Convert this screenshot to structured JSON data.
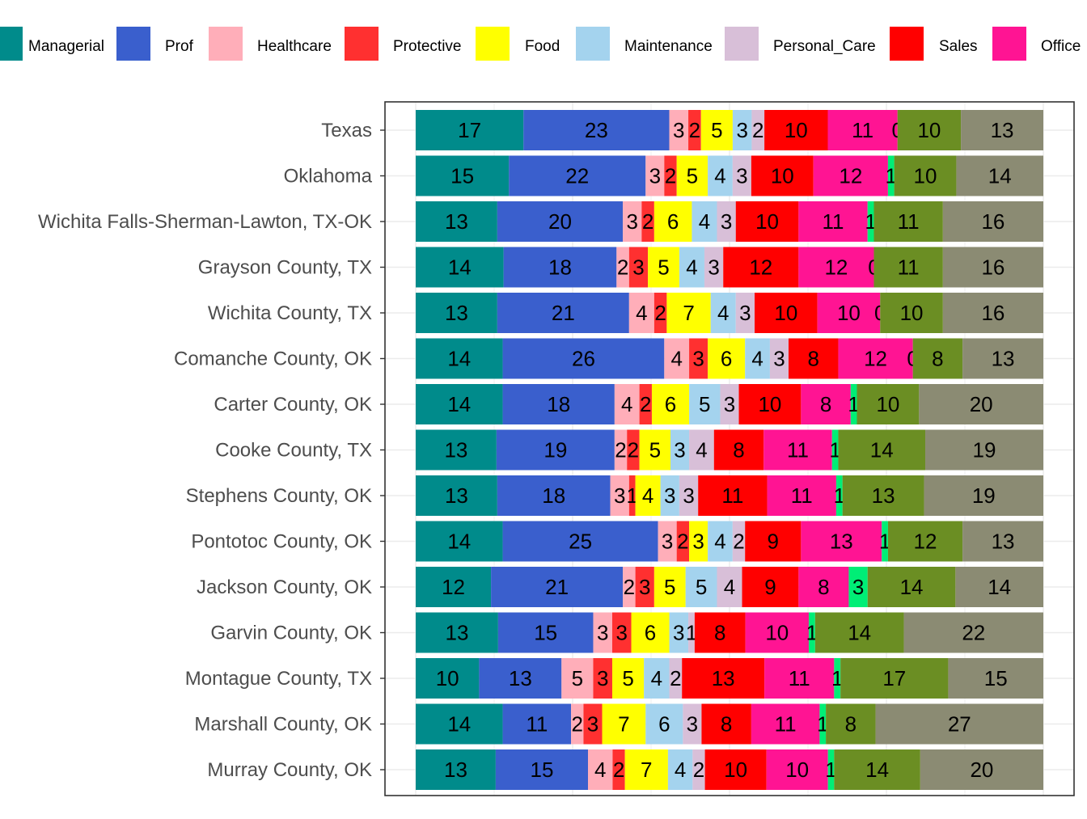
{
  "chart_data": {
    "type": "bar",
    "orientation": "horizontal",
    "stacked": "percent",
    "title": "",
    "xlabel": "",
    "ylabel": "",
    "xlim": [
      0,
      100
    ],
    "grid": true,
    "legend_position": "top",
    "categories": [
      "Texas",
      "Oklahoma",
      "Wichita Falls-Sherman-Lawton, TX-OK",
      "Grayson County, TX",
      "Wichita County, TX",
      "Comanche County, OK",
      "Carter County, OK",
      "Cooke County, TX",
      "Stephens County, OK",
      "Pontotoc County, OK",
      "Jackson County, OK",
      "Garvin County, OK",
      "Montague County, TX",
      "Marshall County, OK",
      "Murray County, OK"
    ],
    "series": [
      {
        "name": "Managerial",
        "color": "#008B8B",
        "values": [
          17,
          15,
          13,
          14,
          13,
          14,
          14,
          13,
          13,
          14,
          12,
          13,
          10,
          14,
          13
        ]
      },
      {
        "name": "Prof",
        "color": "#3A5FCD",
        "values": [
          23,
          22,
          20,
          18,
          21,
          26,
          18,
          19,
          18,
          25,
          21,
          15,
          13,
          11,
          15
        ]
      },
      {
        "name": "Healthcare",
        "color": "#FFAEB9",
        "values": [
          3,
          3,
          3,
          2,
          4,
          4,
          4,
          2,
          3,
          3,
          2,
          3,
          5,
          2,
          4
        ]
      },
      {
        "name": "Protective",
        "color": "#FF3030",
        "values": [
          2,
          2,
          2,
          3,
          2,
          3,
          2,
          2,
          1,
          2,
          3,
          3,
          3,
          3,
          2
        ]
      },
      {
        "name": "Food",
        "color": "#FFFF00",
        "values": [
          5,
          5,
          6,
          5,
          7,
          6,
          6,
          5,
          4,
          3,
          5,
          6,
          5,
          7,
          7
        ]
      },
      {
        "name": "Maintenance",
        "color": "#A4D3EE",
        "values": [
          3,
          4,
          4,
          4,
          4,
          4,
          5,
          3,
          3,
          4,
          5,
          3,
          4,
          6,
          4
        ]
      },
      {
        "name": "Personal_Care",
        "color": "#D8BFD8",
        "values": [
          2,
          3,
          3,
          3,
          3,
          3,
          3,
          4,
          3,
          2,
          4,
          1,
          2,
          3,
          2
        ]
      },
      {
        "name": "Sales",
        "color": "#FF0000",
        "values": [
          10,
          10,
          10,
          12,
          10,
          8,
          10,
          8,
          11,
          9,
          9,
          8,
          13,
          8,
          10
        ]
      },
      {
        "name": "Office",
        "color": "#FF1493",
        "values": [
          11,
          12,
          11,
          12,
          10,
          12,
          8,
          11,
          11,
          13,
          8,
          10,
          11,
          11,
          10
        ]
      },
      {
        "name": "",
        "color": "#00EE76",
        "values": [
          0,
          1,
          1,
          0,
          0,
          0,
          1,
          1,
          1,
          1,
          3,
          1,
          1,
          1,
          1
        ]
      },
      {
        "name": "",
        "color": "#6B8E23",
        "values": [
          10,
          10,
          11,
          11,
          10,
          8,
          10,
          14,
          13,
          12,
          14,
          14,
          17,
          8,
          14
        ]
      },
      {
        "name": "",
        "color": "#8B8B73",
        "values": [
          13,
          14,
          16,
          16,
          16,
          13,
          20,
          19,
          19,
          13,
          14,
          22,
          15,
          27,
          20
        ]
      }
    ]
  }
}
